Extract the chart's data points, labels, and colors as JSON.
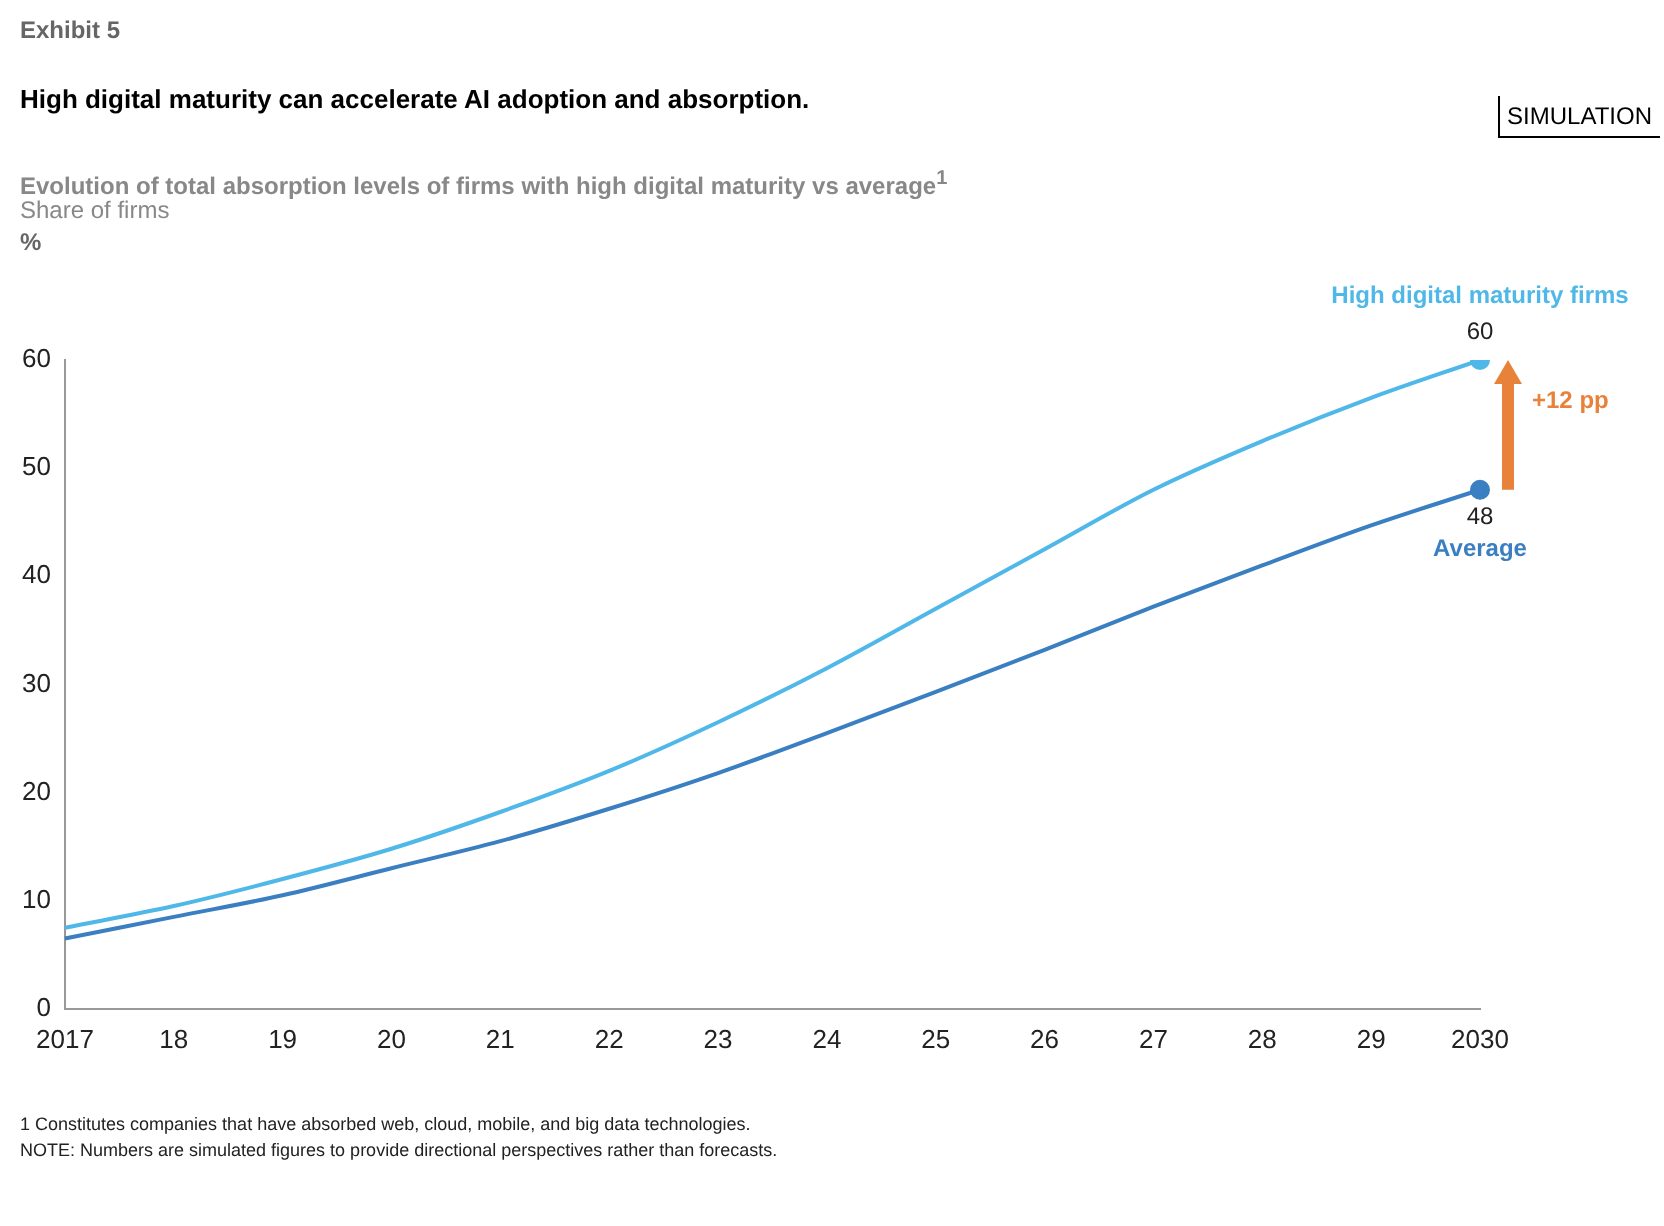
{
  "chart_data": {
    "type": "line",
    "title": "High digital maturity can accelerate AI adoption and absorption.",
    "subtitle": "Evolution of total absorption levels of firms with high digital maturity vs average$^{1}$",
    "ylabel": "%",
    "categories": [
      "2017",
      "18",
      "19",
      "20",
      "21",
      "22",
      "23",
      "24",
      "25",
      "26",
      "27",
      "28",
      "29",
      "2030"
    ],
    "series": [
      {
        "name": "High digital maturity firms",
        "color": "#4fb8e8",
        "values": [
          7.5,
          9.5,
          12,
          14.8,
          18.2,
          22,
          26.5,
          31.5,
          37,
          42.5,
          48,
          52.5,
          56.5,
          60
        ],
        "value_labels": [
          null,
          null,
          null,
          null,
          null,
          null,
          null,
          null,
          null,
          null,
          null,
          null,
          null,
          "60"
        ]
      },
      {
        "name": "Average",
        "color": "#3a7fc1",
        "values": [
          6.5,
          8.5,
          10.5,
          13,
          15.5,
          18.5,
          21.8,
          25.5,
          29.3,
          33.2,
          37.2,
          41,
          44.7,
          48
        ],
        "value_labels": [
          null,
          null,
          null,
          null,
          null,
          null,
          null,
          null,
          null,
          null,
          null,
          null,
          null,
          "48"
        ]
      }
    ],
    "ylim": [
      0,
      60
    ],
    "yticks": [
      0,
      10,
      20,
      30,
      40,
      50,
      60
    ],
    "grid": false,
    "legend": false,
    "line_style": "solid",
    "annotations": [
      "Exhibit 5",
      "SIMULATION",
      "Share of firms",
      "+12 pp",
      "1  Constitutes companies that have absorbed web, cloud, mobile, and big data technologies.",
      "NOTE: Numbers are simulated figures to provide directional perspectives rather than forecasts."
    ]
  }
}
